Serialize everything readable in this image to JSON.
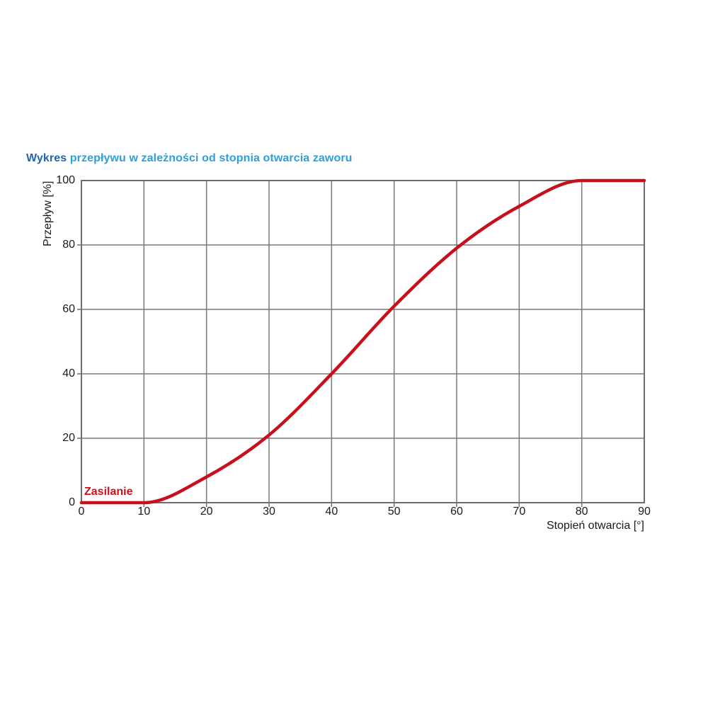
{
  "title": {
    "part1": "Wykres",
    "part2": "przepływu w zależności od stopnia otwarcia zaworu",
    "color1": "#2066b0",
    "color2": "#2f9fd8"
  },
  "colors": {
    "grid": "#787878",
    "axis_border": "#6e6e6e",
    "tick_text": "#1a1a1a",
    "background": "#ffffff"
  },
  "chart_data": {
    "type": "line",
    "title": "Wykres przepływu w zależności od stopnia otwarcia zaworu",
    "xlabel": "Stopień otwarcia [°]",
    "ylabel": "Przepływ [%]",
    "xlim": [
      0,
      90
    ],
    "ylim": [
      0,
      100
    ],
    "xticks": [
      0,
      10,
      20,
      30,
      40,
      50,
      60,
      70,
      80,
      90
    ],
    "yticks": [
      0,
      20,
      40,
      60,
      80,
      100
    ],
    "grid": true,
    "legend_position": "inside-bottom-left",
    "series": [
      {
        "name": "Zasilanie",
        "color": "#c8101d",
        "x": [
          0,
          10,
          20,
          30,
          40,
          50,
          60,
          70,
          80,
          90
        ],
        "y": [
          0,
          0,
          8,
          21,
          40,
          61,
          79,
          92,
          100,
          100
        ]
      }
    ]
  }
}
